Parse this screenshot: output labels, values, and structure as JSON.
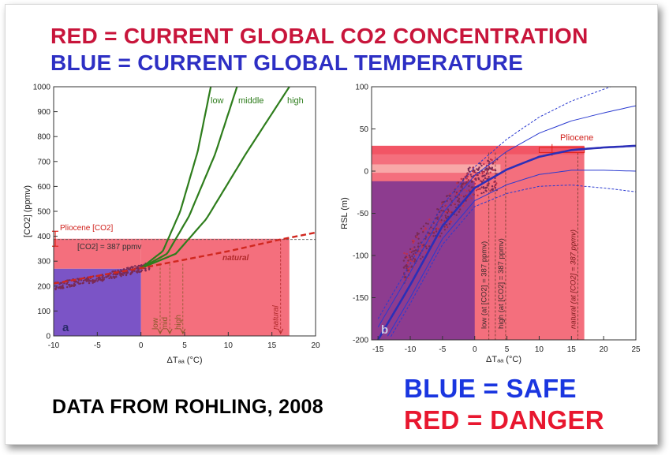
{
  "headline": {
    "red_line": "RED = CURRENT GLOBAL CO2 CONCENTRATION",
    "blue_line": "BLUE = CURRENT GLOBAL TEMPERATURE",
    "source": "DATA FROM ROHLING, 2008",
    "safe": "BLUE = SAFE",
    "danger": "RED = DANGER"
  },
  "colors": {
    "red_text": "#c8153b",
    "blue_text": "#2d2fc4",
    "danger_fill": "#f46f7d",
    "safe_fill": "#7b54c6",
    "curve_green": "#2e7d1c",
    "natural_red": "#d0271f",
    "dots": "#7a2a55"
  },
  "chart_data": [
    {
      "type": "scatter",
      "panel_label": "a",
      "xlabel": "ΔT_AA (°C)",
      "ylabel": "[CO2] (ppmv)",
      "xlim": [
        -10,
        20
      ],
      "ylim": [
        0,
        1000
      ],
      "xticks": [
        -10,
        -5,
        0,
        5,
        10,
        15,
        20
      ],
      "yticks": [
        0,
        100,
        200,
        300,
        400,
        500,
        600,
        700,
        800,
        900,
        1000
      ],
      "danger_region": {
        "x": [
          0,
          17
        ],
        "y": [
          0,
          390
        ]
      },
      "safe_region": {
        "x": [
          -10,
          0
        ],
        "y": [
          0,
          270
        ]
      },
      "reference_lines": [
        {
          "label": "[CO2] = 387 ppmv",
          "y": 387
        },
        {
          "label": "Pliocene [CO2]",
          "y_range": [
            360,
            420
          ]
        }
      ],
      "series": [
        {
          "name": "low",
          "points": [
            [
              0,
              272
            ],
            [
              2.5,
              340
            ],
            [
              4.5,
              500
            ],
            [
              6.5,
              740
            ],
            [
              8,
              1000
            ]
          ]
        },
        {
          "name": "middle",
          "points": [
            [
              0,
              272
            ],
            [
              3,
              330
            ],
            [
              5.5,
              480
            ],
            [
              8.5,
              730
            ],
            [
              11,
              1000
            ]
          ]
        },
        {
          "name": "high",
          "points": [
            [
              0,
              272
            ],
            [
              4,
              330
            ],
            [
              7.5,
              470
            ],
            [
              12,
              730
            ],
            [
              17,
              1000
            ]
          ]
        },
        {
          "name": "natural",
          "points": [
            [
              -10,
              210
            ],
            [
              0,
              272
            ],
            [
              10,
              340
            ],
            [
              16,
              387
            ],
            [
              20,
              415
            ]
          ]
        }
      ],
      "scatter_trend": [
        [
          -10,
          200
        ],
        [
          -5,
          230
        ],
        [
          -2,
          255
        ],
        [
          1,
          280
        ]
      ],
      "markers": [
        {
          "label": "low",
          "x": 2.2
        },
        {
          "label": "mid",
          "x": 3.3
        },
        {
          "label": "high",
          "x": 4.8
        },
        {
          "label": "natural",
          "x": 16
        }
      ]
    },
    {
      "type": "scatter",
      "panel_label": "b",
      "xlabel": "ΔT_AA (°C)",
      "ylabel": "RSL (m)",
      "xlim": [
        -16,
        25
      ],
      "ylim": [
        -200,
        100
      ],
      "xticks": [
        -15,
        -10,
        -5,
        0,
        5,
        10,
        15,
        20,
        25
      ],
      "yticks": [
        -200,
        -150,
        -100,
        -50,
        0,
        50,
        100
      ],
      "danger_region": {
        "x": [
          -16,
          17
        ],
        "y": [
          -200,
          30
        ]
      },
      "safe_region": {
        "x": [
          -16,
          0
        ],
        "y": [
          -200,
          -12
        ]
      },
      "pliocene_label": "Pliocene",
      "pliocene_band": {
        "x": [
          10,
          17
        ],
        "y": [
          22,
          28
        ]
      },
      "fit_curve": [
        [
          -15,
          -200
        ],
        [
          -10,
          -135
        ],
        [
          -5,
          -65
        ],
        [
          0,
          -20
        ],
        [
          5,
          2
        ],
        [
          10,
          17
        ],
        [
          15,
          25
        ],
        [
          20,
          28
        ],
        [
          25,
          30
        ]
      ],
      "vertical_markers": [
        {
          "label": "low (at [CO2] = 387 ppmv)",
          "x": 2.2
        },
        {
          "label": "high (at [CO2] = 387 ppmv)",
          "x": 4.8
        },
        {
          "label": "natural (at [CO2] = 387 ppmv)",
          "x": 16
        }
      ],
      "scatter_trend": [
        [
          -10,
          -100
        ],
        [
          -7,
          -75
        ],
        [
          -4,
          -45
        ],
        [
          -1,
          -15
        ],
        [
          2,
          -5
        ]
      ]
    }
  ]
}
